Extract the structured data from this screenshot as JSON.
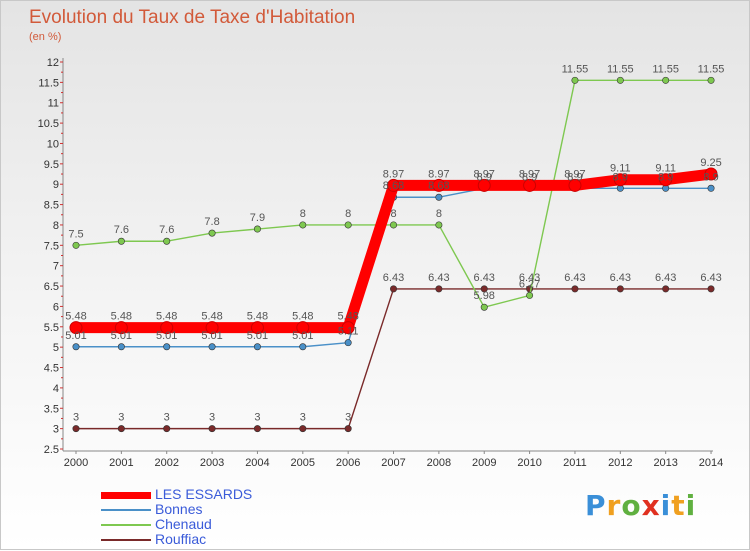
{
  "title": "Evolution du Taux de Taxe d'Habitation",
  "subtitle": "(en %)",
  "chart_data": {
    "type": "line",
    "title": "Evolution du Taux de Taxe d'Habitation",
    "ylabel": "(en %)",
    "xlabel": "",
    "x": [
      "2000",
      "2001",
      "2002",
      "2003",
      "2004",
      "2005",
      "2006",
      "2007",
      "2008",
      "2009",
      "2010",
      "2011",
      "2012",
      "2013",
      "2014"
    ],
    "ylim": [
      2.5,
      12
    ],
    "yticks": [
      "2.5",
      "3",
      "3.5",
      "4",
      "4.5",
      "5",
      "5.5",
      "6",
      "6.5",
      "7",
      "7.5",
      "8",
      "8.5",
      "9",
      "9.5",
      "10",
      "10.5",
      "11",
      "11.5",
      "12"
    ],
    "grid": false,
    "legend": "bottom-left",
    "series": [
      {
        "name": "LES ESSARDS",
        "color": "#ff0000",
        "values": [
          5.48,
          5.48,
          5.48,
          5.48,
          5.48,
          5.48,
          5.48,
          8.97,
          8.97,
          8.97,
          8.97,
          8.97,
          9.11,
          9.11,
          9.25
        ],
        "labels": [
          "5.48",
          "5.48",
          "5.48",
          "5.48",
          "5.48",
          "5.48",
          "5.48",
          "8.97",
          "8.97",
          "8.97",
          "8.97",
          "8.97",
          "9.11",
          "9.11",
          "9.25"
        ]
      },
      {
        "name": "Bonnes",
        "color": "#4a90c8",
        "values": [
          5.01,
          5.01,
          5.01,
          5.01,
          5.01,
          5.01,
          5.11,
          8.68,
          8.68,
          8.9,
          8.9,
          8.9,
          8.9,
          8.9,
          8.9
        ],
        "labels": [
          "5.01",
          "5.01",
          "5.01",
          "5.01",
          "5.01",
          "5.01",
          "5.11",
          "8.68",
          "8.68",
          "8.9",
          "8.9",
          "8.9",
          "8.9",
          "8.9",
          "8.9"
        ]
      },
      {
        "name": "Chenaud",
        "color": "#7ec850",
        "values": [
          7.5,
          7.6,
          7.6,
          7.8,
          7.9,
          8,
          8,
          8,
          8,
          5.98,
          6.27,
          11.55,
          11.55,
          11.55,
          11.55
        ],
        "labels": [
          "7.5",
          "7.6",
          "7.6",
          "7.8",
          "7.9",
          "8",
          "8",
          "8",
          "8",
          "5.98",
          "6.27",
          "11.55",
          "11.55",
          "11.55",
          "11.55"
        ]
      },
      {
        "name": "Rouffiac",
        "color": "#7a2a2a",
        "values": [
          3,
          3,
          3,
          3,
          3,
          3,
          3,
          6.43,
          6.43,
          6.43,
          6.43,
          6.43,
          6.43,
          6.43,
          6.43
        ],
        "labels": [
          "3",
          "3",
          "3",
          "3",
          "3",
          "3",
          "3",
          "6.43",
          "6.43",
          "6.43",
          "6.43",
          "6.43",
          "6.43",
          "6.43",
          "6.43"
        ]
      }
    ]
  },
  "legend": {
    "items": [
      {
        "label": "LES ESSARDS",
        "color": "#ff0000",
        "thick": true
      },
      {
        "label": "Bonnes",
        "color": "#4a90c8",
        "thick": false
      },
      {
        "label": "Chenaud",
        "color": "#7ec850",
        "thick": false
      },
      {
        "label": "Rouffiac",
        "color": "#7a2a2a",
        "thick": false
      }
    ]
  },
  "logo": {
    "text": "Proxiti",
    "letters": [
      {
        "ch": "P",
        "color": "#3a8fd8"
      },
      {
        "ch": "r",
        "color": "#f0a020"
      },
      {
        "ch": "o",
        "color": "#60b040"
      },
      {
        "ch": "x",
        "color": "#e03020"
      },
      {
        "ch": "i",
        "color": "#3a8fd8"
      },
      {
        "ch": "t",
        "color": "#f0a020"
      },
      {
        "ch": "i",
        "color": "#60b040"
      }
    ]
  }
}
